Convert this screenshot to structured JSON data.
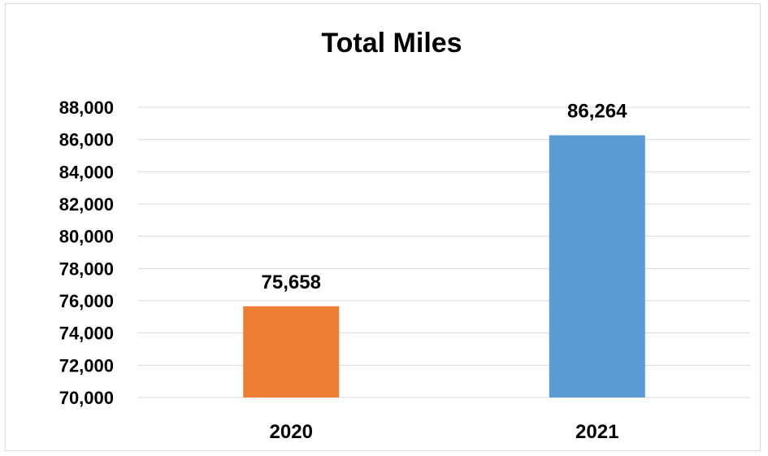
{
  "chart_data": {
    "type": "bar",
    "title": "Total Miles",
    "xlabel": "",
    "ylabel": "",
    "categories": [
      "2020",
      "2021"
    ],
    "values": [
      75658,
      86264
    ],
    "data_labels": [
      "75,658",
      "86,264"
    ],
    "colors": [
      "#ed7d31",
      "#5b9bd5"
    ],
    "ylim": [
      70000,
      88000
    ],
    "yticks": [
      70000,
      72000,
      74000,
      76000,
      78000,
      80000,
      82000,
      84000,
      86000,
      88000
    ],
    "ytick_labels": [
      "70,000",
      "72,000",
      "74,000",
      "76,000",
      "78,000",
      "80,000",
      "82,000",
      "84,000",
      "86,000",
      "88,000"
    ],
    "grid": true,
    "legend": "none"
  }
}
